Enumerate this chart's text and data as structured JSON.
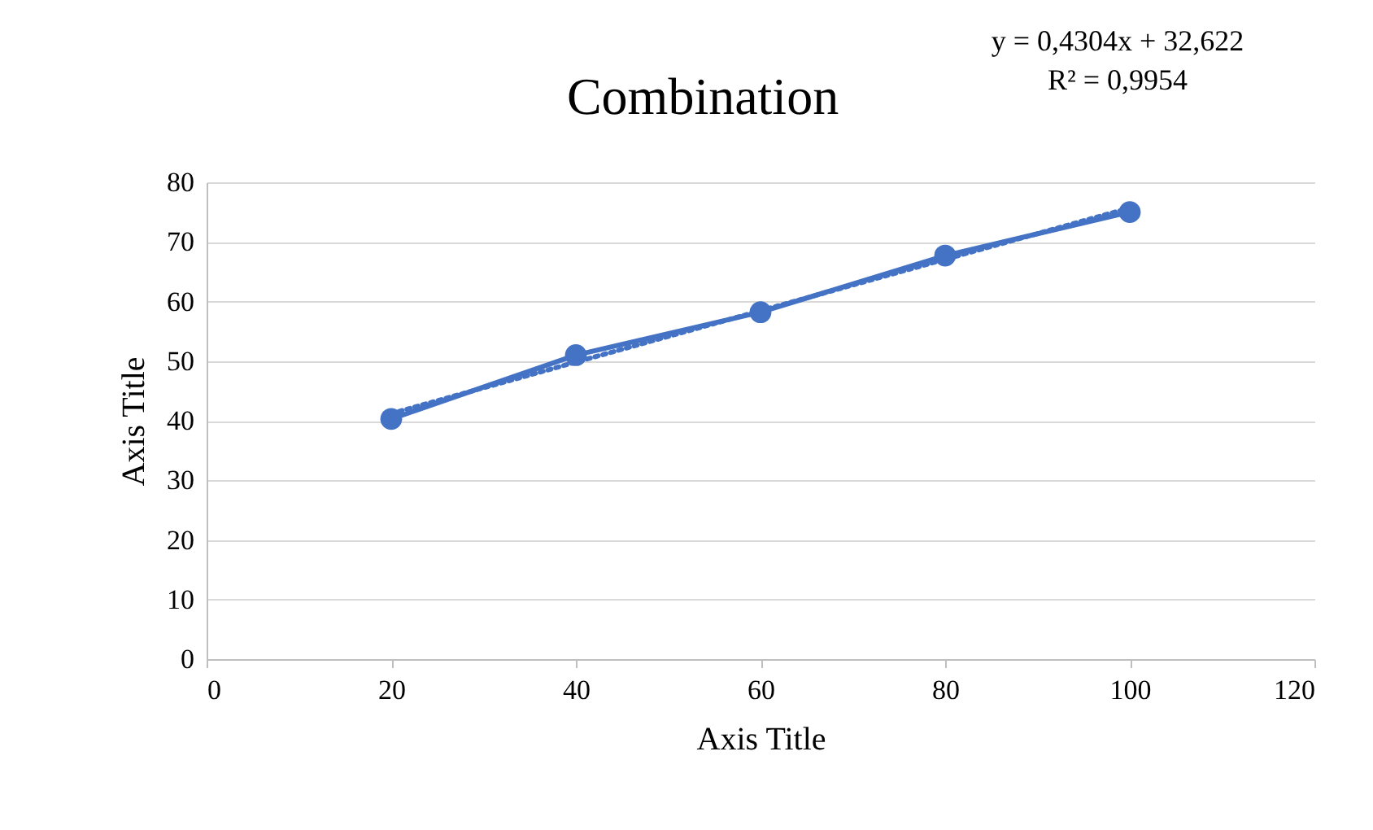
{
  "chart_data": {
    "type": "line",
    "title": "Combination",
    "xlabel": "Axis Title",
    "ylabel": "Axis Title",
    "annotations": [
      "y = 0,4304x + 32,622\nR² = 0,9954"
    ],
    "series": [
      {
        "color": "#4472c4",
        "x": [
          20,
          40,
          60,
          80,
          100
        ],
        "values": [
          40.3,
          51.0,
          58.2,
          67.7,
          75.0
        ],
        "marker": "circle",
        "line_style": "solid"
      },
      {
        "color": "#4472c4",
        "x": [
          20,
          100
        ],
        "values": [
          41.2,
          75.7
        ],
        "marker": "none",
        "line_style": "dotted"
      }
    ],
    "xlim": [
      0,
      120
    ],
    "xticks": [
      0,
      20,
      40,
      60,
      80,
      100,
      120
    ],
    "ylim": [
      0,
      80
    ],
    "yticks": [
      0,
      10,
      20,
      30,
      40,
      50,
      60,
      70,
      80
    ],
    "grid": "y"
  }
}
